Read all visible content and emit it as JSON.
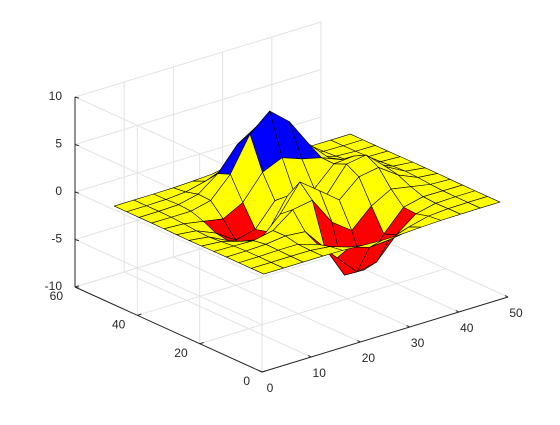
{
  "chart_data": {
    "type": "surface",
    "x": [
      1,
      5,
      9,
      13,
      17,
      21,
      25,
      29,
      33,
      37,
      41,
      45,
      49
    ],
    "y": [
      1,
      5,
      9,
      13,
      17,
      21,
      25,
      29,
      33,
      37,
      41,
      45,
      49
    ],
    "z": [
      [
        0,
        0,
        0,
        0,
        -0.03,
        -0.14,
        -0.24,
        -0.22,
        -0.11,
        -0.03,
        -0.01,
        0,
        0
      ],
      [
        0,
        0,
        0.01,
        0,
        -0.23,
        -0.91,
        -1.57,
        -1.41,
        -0.69,
        -0.18,
        -0.03,
        0,
        0
      ],
      [
        0,
        0.01,
        0.05,
        0.05,
        -0.59,
        -2.63,
        -4.75,
        -4.34,
        -2.1,
        -0.53,
        -0.06,
        0,
        0
      ],
      [
        0,
        0.01,
        0.08,
        0.33,
        0.15,
        -2.19,
        -5.68,
        -5.76,
        -2.63,
        -0.44,
        0.04,
        0.03,
        0
      ],
      [
        -0.01,
        -0.06,
        -0.13,
        0.3,
        1.86,
        2.22,
        -0.72,
        -2.22,
        -0.27,
        0.88,
        0.5,
        0.11,
        0.01
      ],
      [
        -0.03,
        -0.2,
        -0.8,
        -1.21,
        0.8,
        3.55,
        2.0,
        0.39,
        2.2,
        2.56,
        1.12,
        0.24,
        0.03
      ],
      [
        -0.04,
        -0.3,
        -1.33,
        -2.77,
        -1.65,
        1.48,
        0.98,
        0.37,
        2.94,
        3.27,
        1.41,
        0.3,
        0.03
      ],
      [
        -0.03,
        -0.25,
        -1.12,
        -2.49,
        -2.0,
        0.39,
        0.46,
        0.38,
        2.38,
        2.56,
        1.09,
        0.23,
        0.03
      ],
      [
        -0.01,
        -0.11,
        -0.48,
        -0.86,
        0.23,
        2.79,
        3.69,
        2.93,
        2.43,
        1.58,
        0.58,
        0.11,
        0.01
      ],
      [
        0,
        -0.02,
        -0.01,
        0.48,
        2.61,
        6.2,
        8.0,
        6.25,
        3.25,
        1.19,
        0.29,
        0.05,
        0
      ],
      [
        0,
        0.01,
        0.08,
        0.55,
        2.09,
        4.55,
        5.85,
        4.56,
        2.21,
        0.68,
        0.13,
        0.02,
        0
      ],
      [
        0,
        0,
        0.03,
        0.19,
        0.69,
        1.47,
        1.88,
        1.47,
        0.7,
        0.2,
        0.04,
        0,
        0
      ],
      [
        0,
        0,
        0.01,
        0.03,
        0.11,
        0.23,
        0.3,
        0.23,
        0.11,
        0.03,
        0.01,
        0,
        0
      ]
    ],
    "colormap": [
      "#ff0000",
      "#ffff00",
      "#0000ff"
    ],
    "edge_color": "#000000",
    "xlim": [
      0,
      50
    ],
    "xticks": [
      0,
      10,
      20,
      30,
      40,
      50
    ],
    "ylim": [
      0,
      60
    ],
    "yticks": [
      0,
      20,
      40,
      60
    ],
    "zlim": [
      -10,
      10
    ],
    "zticks": [
      -10,
      -5,
      0,
      5,
      10
    ],
    "grid": true
  }
}
